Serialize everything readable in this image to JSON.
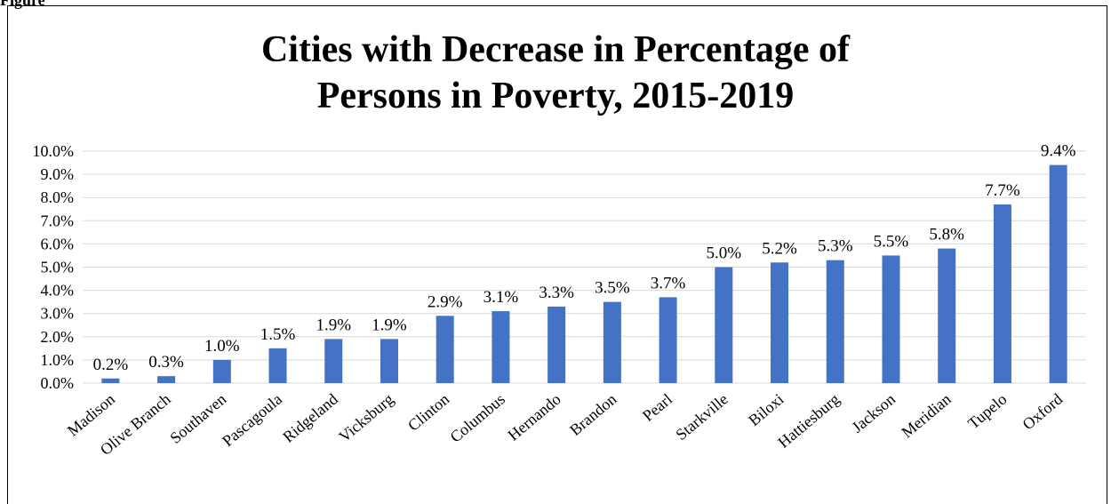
{
  "figure_label": "Figure",
  "chart_data": {
    "type": "bar",
    "title": [
      "Cities with Decrease in Percentage of",
      "Persons in Poverty, 2015-2019"
    ],
    "xlabel": "",
    "ylabel": "",
    "categories": [
      "Madison",
      "Olive Branch",
      "Southaven",
      "Pascagoula",
      "Ridgeland",
      "Vicksburg",
      "Clinton",
      "Columbus",
      "Hernando",
      "Brandon",
      "Pearl",
      "Starkville",
      "Biloxi",
      "Hattiesburg",
      "Jackson",
      "Meridian",
      "Tupelo",
      "Oxford"
    ],
    "values": [
      0.2,
      0.3,
      1.0,
      1.5,
      1.9,
      1.9,
      2.9,
      3.1,
      3.3,
      3.5,
      3.7,
      5.0,
      5.2,
      5.3,
      5.5,
      5.8,
      7.7,
      9.4
    ],
    "data_labels": [
      "0.2%",
      "0.3%",
      "1.0%",
      "1.5%",
      "1.9%",
      "1.9%",
      "2.9%",
      "3.1%",
      "3.3%",
      "3.5%",
      "3.7%",
      "5.0%",
      "5.2%",
      "5.3%",
      "5.5%",
      "5.8%",
      "7.7%",
      "9.4%"
    ],
    "y_ticks": [
      "0.0%",
      "1.0%",
      "2.0%",
      "3.0%",
      "4.0%",
      "5.0%",
      "6.0%",
      "7.0%",
      "8.0%",
      "9.0%",
      "10.0%"
    ],
    "ylim": [
      0,
      10
    ],
    "grid": true,
    "legend": "none",
    "bar_color": "#4472C4",
    "grid_color": "#D9D9D9"
  }
}
